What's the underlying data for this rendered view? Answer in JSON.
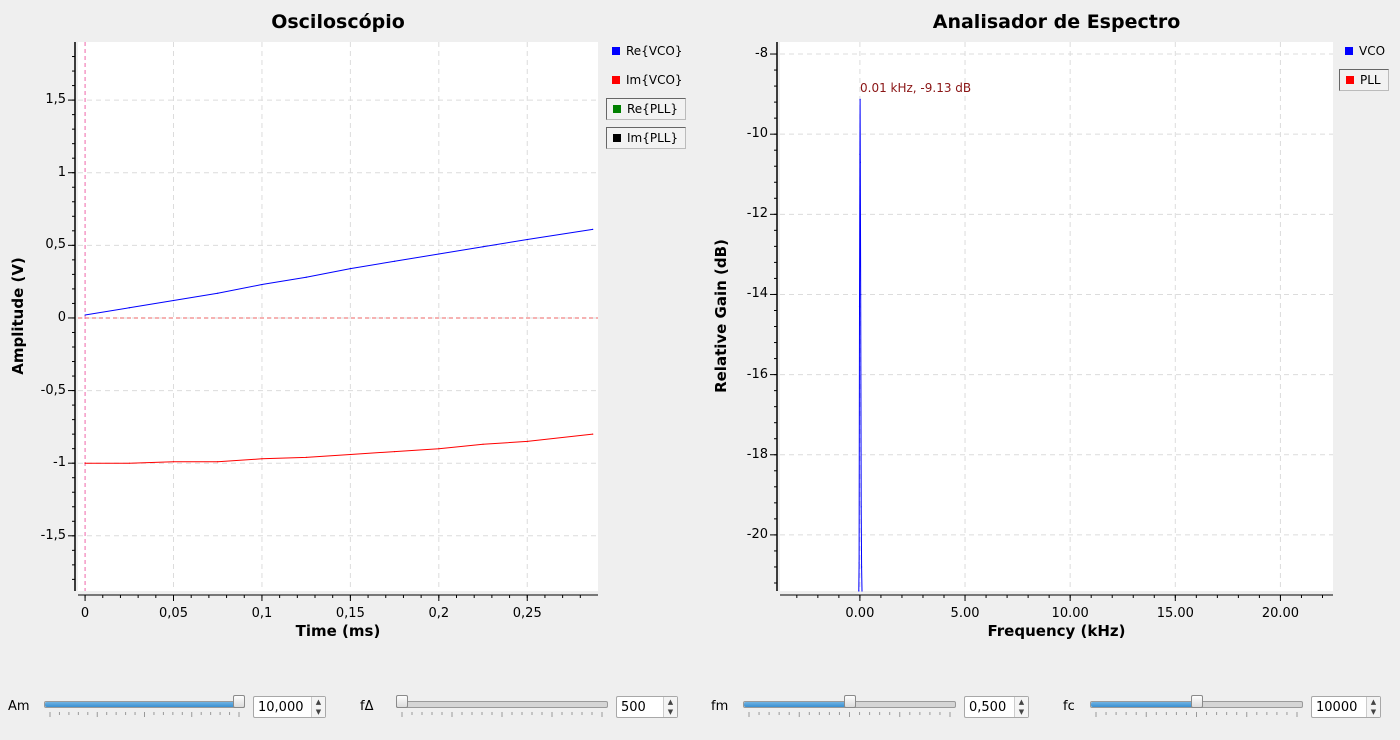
{
  "oscilloscope": {
    "title": "Osciloscópio",
    "xlabel": "Time (ms)",
    "ylabel": "Amplitude (V)",
    "legend": [
      {
        "label": "Re{VCO}",
        "color": "#0000ff",
        "boxed": false
      },
      {
        "label": "Im{VCO}",
        "color": "#ff0000",
        "boxed": false
      },
      {
        "label": "Re{PLL}",
        "color": "#008000",
        "boxed": true
      },
      {
        "label": "Im{PLL}",
        "color": "#000000",
        "boxed": true
      }
    ]
  },
  "spectrum": {
    "title": "Analisador de Espectro",
    "xlabel": "Frequency (kHz)",
    "ylabel": "Relative Gain (dB)",
    "marker_label": "0.01 kHz, -9.13 dB",
    "legend": [
      {
        "label": "VCO",
        "color": "#0000ff",
        "boxed": false
      },
      {
        "label": "PLL",
        "color": "#ff0000",
        "boxed": true
      }
    ]
  },
  "controls": [
    {
      "label": "Am",
      "value": "10,000",
      "fraction": 1.0
    },
    {
      "label": "fΔ",
      "value": "500",
      "fraction": 0.0
    },
    {
      "label": "fm",
      "value": "0,500",
      "fraction": 0.5
    },
    {
      "label": "fc",
      "value": "10000",
      "fraction": 0.5
    }
  ],
  "chart_data": [
    {
      "type": "line",
      "title": "Osciloscópio",
      "xlabel": "Time (ms)",
      "ylabel": "Amplitude (V)",
      "xlim": [
        -0.004,
        0.29
      ],
      "ylim": [
        -1.88,
        1.9
      ],
      "x_ticks": [
        0,
        0.05,
        0.1,
        0.15,
        0.2,
        0.25
      ],
      "x_tick_labels": [
        "0",
        "0,05",
        "0,1",
        "0,15",
        "0,2",
        "0,25"
      ],
      "y_ticks": [
        1.5,
        1,
        0.5,
        0,
        -0.5,
        -1,
        -1.5
      ],
      "y_tick_labels": [
        "1,5",
        "1",
        "0,5",
        "0",
        "-0,5",
        "-1",
        "-1,5"
      ],
      "grid": true,
      "legend_position": "right",
      "series": [
        {
          "name": "Re{VCO}",
          "color": "#0000ff",
          "x": [
            0,
            0.025,
            0.05,
            0.075,
            0.1,
            0.125,
            0.15,
            0.175,
            0.2,
            0.225,
            0.25,
            0.287
          ],
          "y": [
            0.02,
            0.07,
            0.12,
            0.17,
            0.23,
            0.28,
            0.34,
            0.39,
            0.44,
            0.49,
            0.54,
            0.61
          ]
        },
        {
          "name": "Im{VCO}",
          "color": "#ff0000",
          "x": [
            0,
            0.025,
            0.05,
            0.075,
            0.1,
            0.125,
            0.15,
            0.175,
            0.2,
            0.225,
            0.25,
            0.287
          ],
          "y": [
            -1.0,
            -1.0,
            -0.99,
            -0.99,
            -0.97,
            -0.96,
            -0.94,
            -0.92,
            -0.9,
            -0.87,
            -0.85,
            -0.8
          ]
        }
      ]
    },
    {
      "type": "line",
      "title": "Analisador de Espectro",
      "xlabel": "Frequency (kHz)",
      "ylabel": "Relative Gain (dB)",
      "xlim": [
        -3.8,
        22.5
      ],
      "ylim": [
        -21.4,
        -7.7
      ],
      "x_ticks": [
        0,
        5,
        10,
        15,
        20
      ],
      "x_tick_labels": [
        "0.00",
        "5.00",
        "10.00",
        "15.00",
        "20.00"
      ],
      "y_ticks": [
        -8,
        -10,
        -12,
        -14,
        -16,
        -18,
        -20
      ],
      "y_tick_labels": [
        "-8",
        "-10",
        "-12",
        "-14",
        "-16",
        "-18",
        "-20"
      ],
      "grid": true,
      "legend_position": "top-right",
      "annotations": [
        {
          "text": "0.01 kHz, -9.13 dB",
          "x": 0.01,
          "y": -9.13
        }
      ],
      "series": [
        {
          "name": "VCO",
          "color": "#0000ff",
          "x": [
            -0.05,
            -0.04,
            -0.02,
            0.0,
            0.01,
            0.02,
            0.04,
            0.06,
            0.08,
            0.1
          ],
          "y": [
            -21.4,
            -20.7,
            -14.3,
            -10.5,
            -9.13,
            -10.7,
            -14.0,
            -19.3,
            -20.8,
            -21.4
          ]
        }
      ]
    }
  ]
}
